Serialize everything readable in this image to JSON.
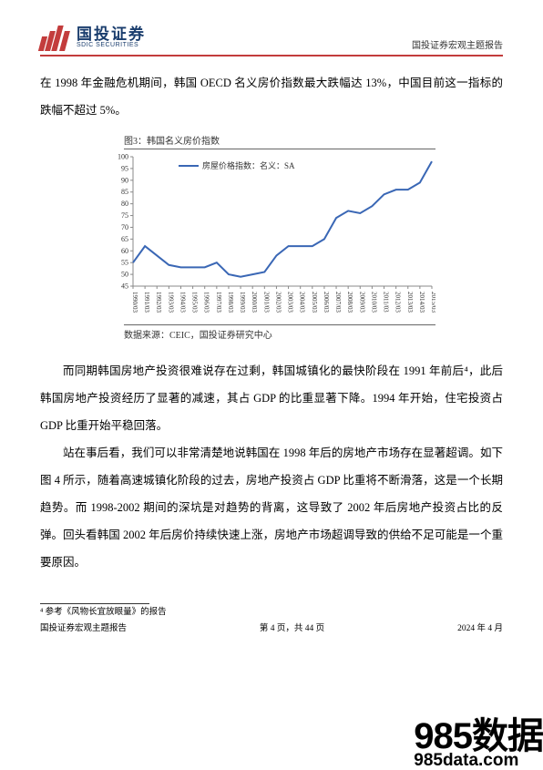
{
  "header": {
    "logo_cn": "国投证券",
    "logo_en": "SDIC SECURITIES",
    "right_text": "国投证券宏观主题报告"
  },
  "paragraphs": {
    "p1": "在 1998 年金融危机期间，韩国 OECD 名义房价指数最大跌幅达 13%，中国目前这一指标的跌幅不超过 5%。",
    "p2": "而同期韩国房地产投资很难说存在过剩，韩国城镇化的最快阶段在 1991 年前后⁴，此后韩国房地产投资经历了显著的减速，其占 GDP 的比重显著下降。1994 年开始，住宅投资占 GDP 比重开始平稳回落。",
    "p3": "站在事后看，我们可以非常清楚地说韩国在 1998 年后的房地产市场存在显著超调。如下图 4 所示，随着高速城镇化阶段的过去，房地产投资占 GDP 比重将不断滑落，这是一个长期趋势。而 1998-2002 期间的深坑是对趋势的背离，这导致了 2002 年后房地产投资占比的反弹。回头看韩国 2002 年后房价持续快速上涨，房地产市场超调导致的供给不足可能是一个重要原因。"
  },
  "chart": {
    "title": "图3：韩国名义房价指数",
    "legend": "房屋价格指数：名义：SA",
    "source": "数据来源：CEIC，国投证券研究中心",
    "ylim": [
      45,
      100
    ],
    "ytick_step": 5,
    "x_labels": [
      "1990/03",
      "1991/03",
      "1992/03",
      "1993/03",
      "1994/03",
      "1995/03",
      "1996/03",
      "1997/03",
      "1998/03",
      "1999/03",
      "2000/03",
      "2001/03",
      "2002/03",
      "2003/03",
      "2004/03",
      "2005/03",
      "2006/03",
      "2007/03",
      "2008/03",
      "2009/03",
      "2010/03",
      "2011/03",
      "2012/03",
      "2013/03",
      "2014/03",
      "2015/03"
    ],
    "data": [
      55,
      62,
      58,
      54,
      53,
      53,
      53,
      55,
      50,
      49,
      50,
      51,
      58,
      62,
      62,
      62,
      65,
      74,
      77,
      76,
      79,
      84,
      86,
      86,
      89,
      98
    ],
    "line_color": "#3a67b5",
    "axis_color": "#888888",
    "tick_font_size": 7,
    "legend_font_size": 9,
    "background_color": "#ffffff"
  },
  "footnote": {
    "text": "⁴ 参考《风物长宜放眼量》的报告"
  },
  "footer": {
    "left": "国投证券宏观主题报告",
    "center": "第 4 页，共 44 页",
    "right": "2024 年 4 月"
  },
  "watermark": {
    "line1": "985数据",
    "line2": "985data.com"
  }
}
